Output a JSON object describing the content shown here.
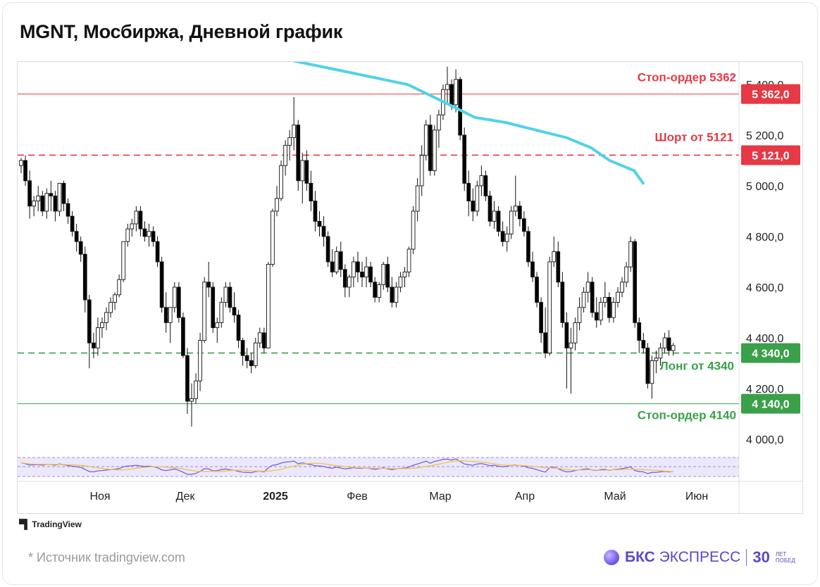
{
  "title": "MGNT, Мосбиржа, Дневной график",
  "source_text": "* Источник tradingview.com",
  "tradingview_label": "TradingView",
  "brand": {
    "name_bold": "БКС",
    "name_rest": "ЭКСПРЕСС",
    "age_num": "30",
    "age_line1": "ЛЕТ",
    "age_line2": "ПОБЕД"
  },
  "colors": {
    "up": "#ffffff",
    "down": "#000000",
    "ma": "#4fd3e8",
    "short": "#e53945",
    "long": "#3aa04a",
    "long_solid": "#3aa04a"
  },
  "chart_data": {
    "type": "candlestick",
    "y_ticks": [
      "5 400,0",
      "5 200,0",
      "5 000,0",
      "4 800,0",
      "4 600,0",
      "4 400,0",
      "4 200,0",
      "4 000,0"
    ],
    "y_tick_values": [
      5400,
      5200,
      5000,
      4800,
      4600,
      4400,
      4200,
      4000
    ],
    "x_ticks": [
      "Ноя",
      "Дек",
      "2025",
      "Фев",
      "Мар",
      "Апр",
      "Май",
      "Июн"
    ],
    "ylim": [
      3900,
      5530
    ],
    "levels": [
      {
        "name": "Стоп-ордер 5362",
        "value": 5362,
        "tag": "5 362,0",
        "color": "#e53945",
        "style": "solid"
      },
      {
        "name": "Шорт от 5121",
        "value": 5121,
        "tag": "5 121,0",
        "color": "#e53945",
        "style": "dashed"
      },
      {
        "name": "Лонг от 4340",
        "value": 4340,
        "tag": "4 340,0",
        "color": "#3aa04a",
        "style": "dashed"
      },
      {
        "name": "Стоп-ордер 4140",
        "value": 4140,
        "tag": "4 140,0",
        "color": "#3aa04a",
        "style": "solid"
      }
    ],
    "candles": [
      [
        5080,
        5110,
        5050,
        5100
      ],
      [
        5100,
        5120,
        5000,
        5020
      ],
      [
        5020,
        5060,
        4870,
        4920
      ],
      [
        4920,
        4960,
        4880,
        4940
      ],
      [
        4940,
        5000,
        4900,
        4960
      ],
      [
        4960,
        4980,
        4880,
        4900
      ],
      [
        4900,
        4990,
        4870,
        4970
      ],
      [
        4970,
        5020,
        4900,
        4960
      ],
      [
        4960,
        4980,
        4860,
        4900
      ],
      [
        4900,
        5000,
        4880,
        5010
      ],
      [
        5010,
        5020,
        4900,
        4930
      ],
      [
        4930,
        4950,
        4850,
        4880
      ],
      [
        4880,
        4900,
        4800,
        4820
      ],
      [
        4820,
        4850,
        4740,
        4780
      ],
      [
        4780,
        4800,
        4700,
        4730
      ],
      [
        4730,
        4760,
        4500,
        4550
      ],
      [
        4550,
        4570,
        4280,
        4380
      ],
      [
        4380,
        4420,
        4320,
        4360
      ],
      [
        4360,
        4480,
        4330,
        4440
      ],
      [
        4440,
        4480,
        4400,
        4460
      ],
      [
        4460,
        4520,
        4430,
        4500
      ],
      [
        4500,
        4560,
        4480,
        4540
      ],
      [
        4540,
        4580,
        4510,
        4570
      ],
      [
        4570,
        4650,
        4560,
        4630
      ],
      [
        4630,
        4780,
        4620,
        4780
      ],
      [
        4780,
        4850,
        4760,
        4830
      ],
      [
        4830,
        4870,
        4800,
        4850
      ],
      [
        4850,
        4920,
        4820,
        4900
      ],
      [
        4900,
        4920,
        4800,
        4830
      ],
      [
        4830,
        4860,
        4780,
        4800
      ],
      [
        4800,
        4850,
        4760,
        4820
      ],
      [
        4820,
        4840,
        4760,
        4780
      ],
      [
        4780,
        4800,
        4680,
        4700
      ],
      [
        4700,
        4720,
        4500,
        4520
      ],
      [
        4520,
        4580,
        4420,
        4460
      ],
      [
        4460,
        4520,
        4380,
        4520
      ],
      [
        4520,
        4620,
        4500,
        4600
      ],
      [
        4600,
        4620,
        4460,
        4480
      ],
      [
        4480,
        4500,
        4320,
        4330
      ],
      [
        4330,
        4360,
        4100,
        4150
      ],
      [
        4150,
        4220,
        4050,
        4160
      ],
      [
        4160,
        4260,
        4140,
        4230
      ],
      [
        4230,
        4420,
        4190,
        4390
      ],
      [
        4390,
        4640,
        4380,
        4620
      ],
      [
        4620,
        4700,
        4560,
        4600
      ],
      [
        4600,
        4620,
        4420,
        4440
      ],
      [
        4440,
        4480,
        4380,
        4460
      ],
      [
        4460,
        4560,
        4440,
        4540
      ],
      [
        4540,
        4620,
        4520,
        4600
      ],
      [
        4600,
        4620,
        4500,
        4520
      ],
      [
        4520,
        4580,
        4460,
        4490
      ],
      [
        4490,
        4510,
        4360,
        4390
      ],
      [
        4390,
        4400,
        4290,
        4330
      ],
      [
        4330,
        4360,
        4280,
        4310
      ],
      [
        4310,
        4340,
        4260,
        4290
      ],
      [
        4290,
        4400,
        4280,
        4380
      ],
      [
        4380,
        4440,
        4360,
        4420
      ],
      [
        4420,
        4440,
        4340,
        4360
      ],
      [
        4360,
        4700,
        4360,
        4690
      ],
      [
        4690,
        4910,
        4680,
        4900
      ],
      [
        4900,
        5000,
        4880,
        4950
      ],
      [
        4950,
        5100,
        4940,
        5080
      ],
      [
        5080,
        5180,
        5040,
        5160
      ],
      [
        5160,
        5220,
        5100,
        5190
      ],
      [
        5190,
        5350,
        5140,
        5240
      ],
      [
        5240,
        5260,
        4980,
        5020
      ],
      [
        5020,
        5130,
        4930,
        5100
      ],
      [
        5100,
        5140,
        4980,
        5010
      ],
      [
        5010,
        5060,
        4900,
        4940
      ],
      [
        4940,
        4980,
        4820,
        4860
      ],
      [
        4860,
        4900,
        4800,
        4840
      ],
      [
        4840,
        4880,
        4760,
        4800
      ],
      [
        4800,
        4820,
        4680,
        4700
      ],
      [
        4700,
        4750,
        4640,
        4660
      ],
      [
        4660,
        4760,
        4650,
        4740
      ],
      [
        4740,
        4780,
        4640,
        4670
      ],
      [
        4670,
        4690,
        4560,
        4600
      ],
      [
        4600,
        4650,
        4560,
        4640
      ],
      [
        4640,
        4720,
        4600,
        4700
      ],
      [
        4700,
        4740,
        4620,
        4660
      ],
      [
        4660,
        4700,
        4600,
        4640
      ],
      [
        4640,
        4720,
        4600,
        4680
      ],
      [
        4680,
        4700,
        4600,
        4620
      ],
      [
        4620,
        4640,
        4540,
        4560
      ],
      [
        4560,
        4620,
        4540,
        4610
      ],
      [
        4610,
        4700,
        4590,
        4690
      ],
      [
        4690,
        4720,
        4580,
        4600
      ],
      [
        4600,
        4640,
        4520,
        4540
      ],
      [
        4540,
        4620,
        4520,
        4600
      ],
      [
        4600,
        4660,
        4580,
        4640
      ],
      [
        4640,
        4680,
        4600,
        4660
      ],
      [
        4660,
        4760,
        4640,
        4750
      ],
      [
        4750,
        4920,
        4730,
        4900
      ],
      [
        4900,
        5030,
        4860,
        5000
      ],
      [
        5000,
        5160,
        4960,
        5120
      ],
      [
        5120,
        5260,
        5100,
        5240
      ],
      [
        5240,
        5280,
        5040,
        5060
      ],
      [
        5060,
        5240,
        5040,
        5220
      ],
      [
        5220,
        5300,
        5150,
        5280
      ],
      [
        5280,
        5400,
        5260,
        5380
      ],
      [
        5380,
        5470,
        5320,
        5400
      ],
      [
        5400,
        5420,
        5300,
        5320
      ],
      [
        5320,
        5460,
        5290,
        5420
      ],
      [
        5420,
        5430,
        5180,
        5200
      ],
      [
        5200,
        5230,
        4980,
        5010
      ],
      [
        5010,
        5060,
        4880,
        4940
      ],
      [
        4940,
        4990,
        4860,
        4900
      ],
      [
        4900,
        5020,
        4880,
        5000
      ],
      [
        5000,
        5080,
        4960,
        5040
      ],
      [
        5040,
        5060,
        4940,
        4960
      ],
      [
        4960,
        4980,
        4840,
        4860
      ],
      [
        4860,
        4940,
        4830,
        4900
      ],
      [
        4900,
        4920,
        4800,
        4820
      ],
      [
        4820,
        4860,
        4760,
        4780
      ],
      [
        4780,
        4840,
        4740,
        4810
      ],
      [
        4810,
        4920,
        4790,
        4900
      ],
      [
        4900,
        5040,
        4880,
        4920
      ],
      [
        4920,
        4940,
        4840,
        4870
      ],
      [
        4870,
        4900,
        4800,
        4820
      ],
      [
        4820,
        4840,
        4680,
        4700
      ],
      [
        4700,
        4740,
        4620,
        4640
      ],
      [
        4640,
        4660,
        4520,
        4540
      ],
      [
        4540,
        4560,
        4380,
        4420
      ],
      [
        4420,
        4520,
        4320,
        4340
      ],
      [
        4340,
        4720,
        4330,
        4700
      ],
      [
        4700,
        4800,
        4680,
        4740
      ],
      [
        4740,
        4780,
        4600,
        4620
      ],
      [
        4620,
        4660,
        4440,
        4460
      ],
      [
        4460,
        4500,
        4200,
        4360
      ],
      [
        4360,
        4440,
        4180,
        4380
      ],
      [
        4380,
        4480,
        4350,
        4460
      ],
      [
        4460,
        4560,
        4430,
        4520
      ],
      [
        4520,
        4600,
        4500,
        4580
      ],
      [
        4580,
        4660,
        4540,
        4620
      ],
      [
        4620,
        4640,
        4480,
        4500
      ],
      [
        4500,
        4560,
        4440,
        4470
      ],
      [
        4470,
        4560,
        4450,
        4540
      ],
      [
        4540,
        4620,
        4520,
        4560
      ],
      [
        4560,
        4580,
        4460,
        4480
      ],
      [
        4480,
        4560,
        4460,
        4540
      ],
      [
        4540,
        4600,
        4520,
        4580
      ],
      [
        4580,
        4640,
        4560,
        4620
      ],
      [
        4620,
        4700,
        4600,
        4680
      ],
      [
        4680,
        4800,
        4660,
        4780
      ],
      [
        4780,
        4790,
        4440,
        4460
      ],
      [
        4460,
        4480,
        4340,
        4390
      ],
      [
        4390,
        4420,
        4340,
        4360
      ],
      [
        4360,
        4380,
        4200,
        4220
      ],
      [
        4220,
        4330,
        4160,
        4310
      ],
      [
        4310,
        4350,
        4260,
        4320
      ],
      [
        4320,
        4380,
        4290,
        4360
      ],
      [
        4360,
        4420,
        4340,
        4400
      ],
      [
        4400,
        4430,
        4330,
        4350
      ],
      [
        4350,
        4380,
        4330,
        4370
      ]
    ],
    "ma": [
      [
        0,
        5520
      ],
      [
        48,
        5400
      ],
      [
        60,
        5330
      ],
      [
        70,
        5270
      ],
      [
        80,
        5250
      ],
      [
        90,
        5220
      ],
      [
        100,
        5190
      ],
      [
        108,
        5150
      ],
      [
        114,
        5100
      ],
      [
        122,
        5060
      ],
      [
        125,
        5010
      ]
    ]
  }
}
